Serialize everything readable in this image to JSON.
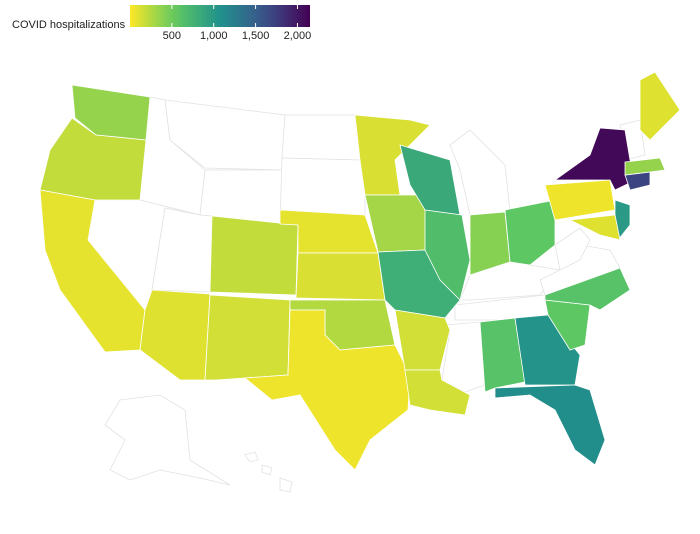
{
  "chart_data": {
    "type": "choropleth",
    "legend_title": "COVID hospitalizations",
    "colormap": "viridis_r",
    "clim": [
      0,
      2150
    ],
    "cticks": [
      500,
      {
        "value": 1000,
        "label": "1,000"
      },
      {
        "value": 1500,
        "label": "1,500"
      },
      {
        "value": 2000,
        "label": "2,000"
      }
    ],
    "values": [
      350,
      200,
      80,
      100,
      200,
      150,
      80,
      120,
      250,
      50,
      120,
      300,
      800,
      150,
      150,
      850,
      650,
      400,
      550,
      600,
      1050,
      1100,
      550,
      600,
      50,
      2100,
      1000,
      100,
      1700,
      350,
      100
    ]
  }
}
